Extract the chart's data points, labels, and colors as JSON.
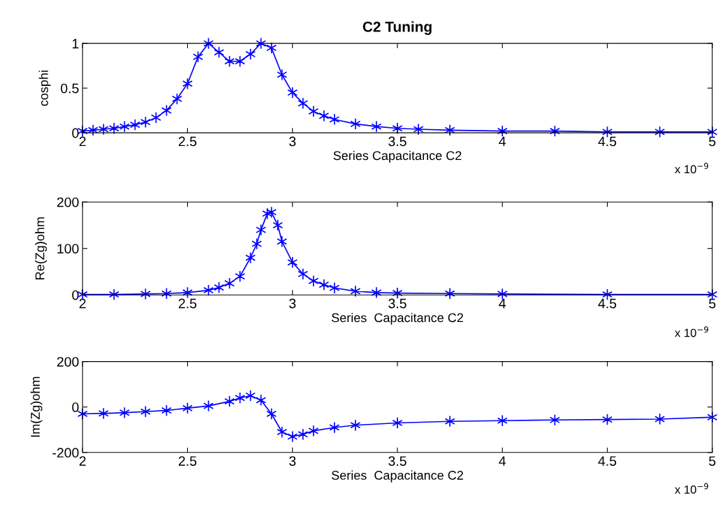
{
  "chart_data": [
    {
      "type": "line",
      "title": "C2 Tuning",
      "xlabel": "Series Capacitance C2",
      "ylabel": "cosphi",
      "annotations": [
        "x 10$^{−9}$"
      ],
      "marker": "cross",
      "grid": false,
      "xlim": [
        2,
        5
      ],
      "xticks": [
        2,
        2.5,
        3,
        3.5,
        4,
        4.5,
        5
      ],
      "ylim": [
        0,
        1
      ],
      "yticks": [
        0,
        0.5,
        1
      ],
      "series": [
        {
          "color": "#0000ff",
          "x": [
            2.0,
            2.05,
            2.1,
            2.15,
            2.2,
            2.25,
            2.3,
            2.35,
            2.4,
            2.45,
            2.5,
            2.55,
            2.6,
            2.65,
            2.7,
            2.75,
            2.8,
            2.85,
            2.9,
            2.95,
            3.0,
            3.05,
            3.1,
            3.15,
            3.2,
            3.3,
            3.4,
            3.5,
            3.6,
            3.75,
            4.0,
            4.25,
            4.5,
            4.75,
            5.0
          ],
          "values": [
            0.02,
            0.03,
            0.04,
            0.05,
            0.07,
            0.09,
            0.12,
            0.17,
            0.25,
            0.38,
            0.55,
            0.85,
            1.0,
            0.9,
            0.8,
            0.8,
            0.88,
            1.0,
            0.95,
            0.65,
            0.45,
            0.33,
            0.24,
            0.19,
            0.15,
            0.1,
            0.07,
            0.05,
            0.04,
            0.03,
            0.02,
            0.02,
            0.01,
            0.01,
            0.01
          ]
        }
      ]
    },
    {
      "type": "line",
      "xlabel": "Series  Capacitance C2",
      "ylabel": "Re(Zg)ohm",
      "annotations": [
        "x 10$^{−9}$"
      ],
      "marker": "cross",
      "grid": false,
      "xlim": [
        2,
        5
      ],
      "xticks": [
        2,
        2.5,
        3,
        3.5,
        4,
        4.5,
        5
      ],
      "ylim": [
        0,
        200
      ],
      "yticks": [
        0,
        100,
        200
      ],
      "series": [
        {
          "color": "#0000ff",
          "x": [
            2.0,
            2.15,
            2.3,
            2.4,
            2.5,
            2.6,
            2.65,
            2.7,
            2.75,
            2.8,
            2.83,
            2.85,
            2.88,
            2.9,
            2.93,
            2.95,
            3.0,
            3.05,
            3.1,
            3.15,
            3.2,
            3.3,
            3.4,
            3.5,
            3.75,
            4.0,
            4.5,
            5.0
          ],
          "values": [
            1,
            1,
            2,
            3,
            5,
            10,
            16,
            25,
            40,
            80,
            110,
            140,
            175,
            178,
            150,
            115,
            70,
            45,
            30,
            22,
            15,
            8,
            5,
            4,
            3,
            2,
            1,
            1
          ]
        }
      ]
    },
    {
      "type": "line",
      "xlabel": "Series  Capacitance C2",
      "ylabel": "Im(Zg)ohm",
      "annotations": [
        "x 10$^{−9}$"
      ],
      "marker": "cross",
      "grid": false,
      "xlim": [
        2,
        5
      ],
      "xticks": [
        2,
        2.5,
        3,
        3.5,
        4,
        4.5,
        5
      ],
      "ylim": [
        -200,
        200
      ],
      "yticks": [
        -200,
        0,
        200
      ],
      "series": [
        {
          "color": "#0000ff",
          "x": [
            2.0,
            2.1,
            2.2,
            2.3,
            2.4,
            2.5,
            2.6,
            2.7,
            2.75,
            2.8,
            2.85,
            2.9,
            2.95,
            3.0,
            3.05,
            3.1,
            3.2,
            3.3,
            3.5,
            3.75,
            4.0,
            4.25,
            4.5,
            4.75,
            5.0
          ],
          "values": [
            -30,
            -28,
            -25,
            -20,
            -15,
            -5,
            5,
            25,
            40,
            50,
            30,
            -30,
            -110,
            -130,
            -120,
            -105,
            -90,
            -80,
            -70,
            -63,
            -60,
            -57,
            -55,
            -53,
            -45
          ]
        }
      ]
    }
  ]
}
